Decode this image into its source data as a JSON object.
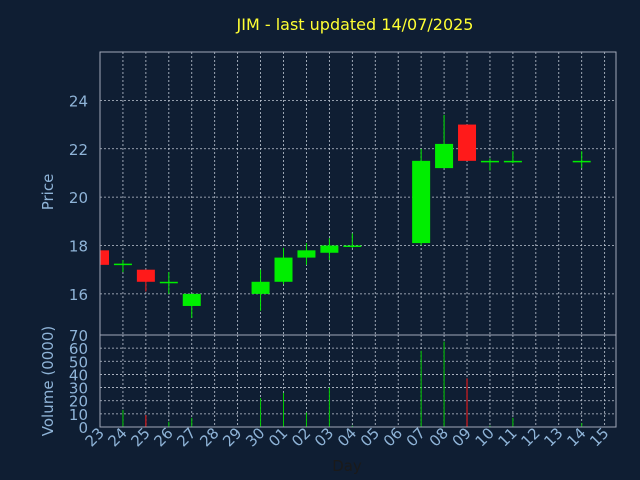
{
  "chart_data": {
    "type": "candlestick",
    "title": "JIM - last updated 14/07/2025",
    "colors": {
      "background": "#0f1e33",
      "title": "#ffff33",
      "axis_text": "#8fb4d8",
      "grid": "#c0c8d4",
      "up": "#00ee00",
      "down": "#ff1a1a",
      "neutral_volume": "#00cc00"
    },
    "x": {
      "label": "Day",
      "ticks": [
        "23",
        "24",
        "25",
        "26",
        "27",
        "28",
        "29",
        "30",
        "01",
        "02",
        "03",
        "04",
        "05",
        "06",
        "07",
        "08",
        "09",
        "10",
        "11",
        "12",
        "13",
        "14",
        "15"
      ]
    },
    "price_panel": {
      "ylabel": "Price",
      "ylim": [
        14.3,
        26
      ],
      "yticks": [
        16,
        18,
        20,
        22,
        24
      ],
      "grid": true
    },
    "volume_panel": {
      "ylabel": "Volume (0000)",
      "ylim": [
        0,
        70
      ],
      "yticks": [
        0,
        10,
        20,
        30,
        40,
        50,
        60,
        70
      ],
      "grid": true
    },
    "candles": [
      {
        "day": "23",
        "open": 17.8,
        "high": 17.8,
        "low": 17.2,
        "close": 17.2,
        "volume": 0
      },
      {
        "day": "24",
        "open": 17.2,
        "high": 17.4,
        "low": 16.9,
        "close": 17.25,
        "volume": 13
      },
      {
        "day": "25",
        "open": 17.0,
        "high": 17.0,
        "low": 16.1,
        "close": 16.5,
        "volume": 9
      },
      {
        "day": "26",
        "open": 16.5,
        "high": 16.9,
        "low": 16.0,
        "close": 16.5,
        "volume": 4
      },
      {
        "day": "27",
        "open": 15.5,
        "high": 16.0,
        "low": 15.0,
        "close": 16.0,
        "volume": 7
      },
      {
        "day": "30",
        "open": 16.0,
        "high": 17.0,
        "low": 15.3,
        "close": 16.5,
        "volume": 22
      },
      {
        "day": "01",
        "open": 16.5,
        "high": 17.9,
        "low": 16.4,
        "close": 17.5,
        "volume": 26
      },
      {
        "day": "02",
        "open": 17.5,
        "high": 18.1,
        "low": 17.2,
        "close": 17.8,
        "volume": 11
      },
      {
        "day": "03",
        "open": 17.7,
        "high": 18.3,
        "low": 17.4,
        "close": 18.0,
        "volume": 30
      },
      {
        "day": "04",
        "open": 18.0,
        "high": 18.5,
        "low": 17.9,
        "close": 18.0,
        "volume": 1
      },
      {
        "day": "07",
        "open": 18.1,
        "high": 22.0,
        "low": 18.0,
        "close": 21.5,
        "volume": 58
      },
      {
        "day": "08",
        "open": 21.2,
        "high": 23.4,
        "low": 21.2,
        "close": 22.2,
        "volume": 65
      },
      {
        "day": "09",
        "open": 23.0,
        "high": 23.0,
        "low": 21.5,
        "close": 21.5,
        "volume": 37
      },
      {
        "day": "10",
        "open": 21.5,
        "high": 21.6,
        "low": 21.1,
        "close": 21.5,
        "volume": 1
      },
      {
        "day": "11",
        "open": 21.5,
        "high": 21.9,
        "low": 21.4,
        "close": 21.5,
        "volume": 7
      },
      {
        "day": "14",
        "open": 21.5,
        "high": 21.9,
        "low": 21.2,
        "close": 21.5,
        "volume": 3
      }
    ]
  }
}
